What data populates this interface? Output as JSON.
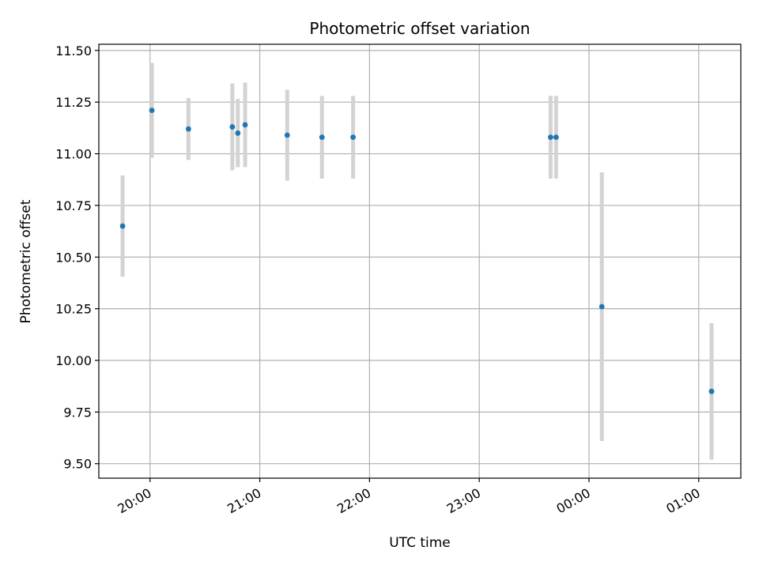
{
  "chart_data": {
    "type": "scatter",
    "title": "Photometric offset variation",
    "xlabel": "UTC time",
    "ylabel": "Photometric offset",
    "x_axis_kind": "time",
    "x_ticks": [
      "20:00",
      "21:00",
      "22:00",
      "23:00",
      "00:00",
      "01:00"
    ],
    "y_ticks": [
      "9.50",
      "9.75",
      "10.00",
      "10.25",
      "10.50",
      "10.75",
      "11.00",
      "11.25",
      "11.50"
    ],
    "xlim": [
      "19:32",
      "01:23"
    ],
    "ylim": [
      9.43,
      11.53
    ],
    "grid": true,
    "marker_color": "#1f77b4",
    "errorbar_color": "#d3d3d3",
    "series": [
      {
        "points": [
          {
            "x": "19:45",
            "y": 10.65,
            "err": 0.245
          },
          {
            "x": "20:01",
            "y": 11.21,
            "err": 0.23
          },
          {
            "x": "20:21",
            "y": 11.12,
            "err": 0.15
          },
          {
            "x": "20:45",
            "y": 11.13,
            "err": 0.21
          },
          {
            "x": "20:48",
            "y": 11.1,
            "err": 0.165
          },
          {
            "x": "20:52",
            "y": 11.14,
            "err": 0.205
          },
          {
            "x": "21:15",
            "y": 11.09,
            "err": 0.22
          },
          {
            "x": "21:34",
            "y": 11.08,
            "err": 0.2
          },
          {
            "x": "21:51",
            "y": 11.08,
            "err": 0.2
          },
          {
            "x": "23:39",
            "y": 11.08,
            "err": 0.2
          },
          {
            "x": "23:42",
            "y": 11.08,
            "err": 0.2
          },
          {
            "x": "00:07",
            "y": 10.26,
            "err": 0.65
          },
          {
            "x": "01:07",
            "y": 9.85,
            "err": 0.33
          }
        ]
      }
    ]
  }
}
